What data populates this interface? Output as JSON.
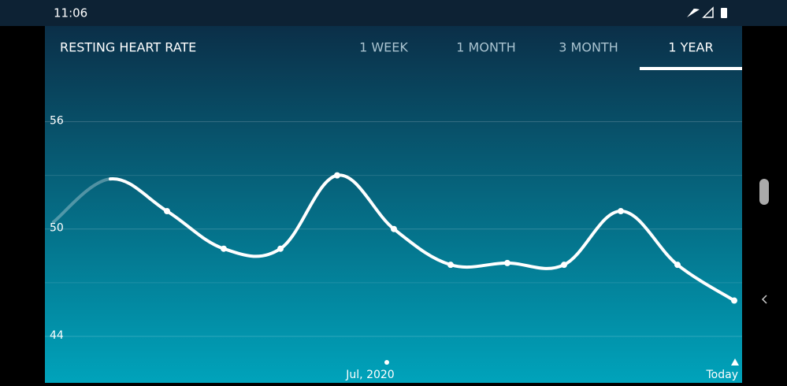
{
  "status_bar": {
    "time": "11:06"
  },
  "header": {
    "title": "RESTING HEART RATE",
    "tabs": [
      "1 WEEK",
      "1 MONTH",
      "3 MONTH",
      "1 YEAR"
    ],
    "selected_tab": 3
  },
  "chart_data": {
    "type": "line",
    "categories": [
      null,
      null,
      null,
      null,
      null,
      null,
      "Jul, 2020",
      null,
      null,
      null,
      null,
      null,
      "Today"
    ],
    "series": [
      {
        "name": "Resting heart rate",
        "color": "#ffffff",
        "values": [
          50.4,
          52.8,
          51.0,
          48.9,
          48.9,
          53.0,
          50.0,
          48.0,
          48.1,
          48.0,
          51.0,
          48.0,
          46.0
        ]
      }
    ],
    "ylim": [
      41.4,
      58.4
    ],
    "yticks": [
      44,
      50,
      56
    ],
    "minor_grid": [
      47,
      53
    ],
    "grid": true
  }
}
